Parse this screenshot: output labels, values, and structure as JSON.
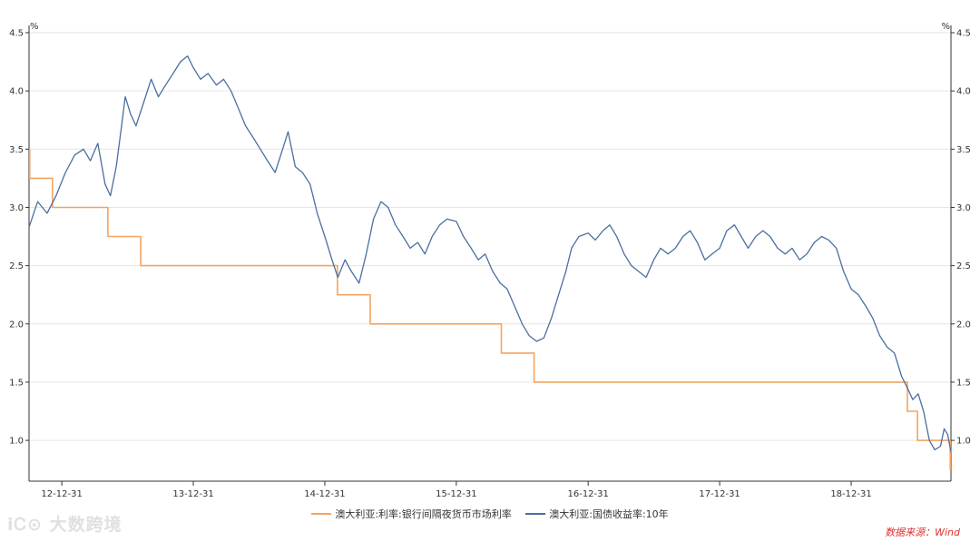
{
  "chart_data": {
    "type": "line",
    "title": "",
    "xlabel": "",
    "ylabel_left": "%",
    "ylabel_right": "%",
    "ylim": [
      0.65,
      4.5
    ],
    "yticks": [
      1.0,
      1.5,
      2.0,
      2.5,
      3.0,
      3.5,
      4.0,
      4.5
    ],
    "ytick_labels": [
      "1.0",
      "1.5",
      "2.0",
      "2.5",
      "3.0",
      "3.5",
      "4.0",
      "4.5"
    ],
    "xlim": [
      "2012-10-01",
      "2019-10-04"
    ],
    "xticks": [
      "2012-12-31",
      "2013-12-31",
      "2014-12-31",
      "2015-12-31",
      "2016-12-31",
      "2017-12-31",
      "2018-12-31"
    ],
    "xtick_labels": [
      "12-12-31",
      "13-12-31",
      "14-12-31",
      "15-12-31",
      "16-12-31",
      "17-12-31",
      "18-12-31"
    ],
    "grid": "horizontal",
    "legend_position": "bottom",
    "series": [
      {
        "name": "澳大利亚:利率:银行间隔夜货币市场利率",
        "color": "#f4a460",
        "step": true,
        "points": [
          [
            "2012-10-01",
            3.5
          ],
          [
            "2012-10-03",
            3.25
          ],
          [
            "2012-12-05",
            3.0
          ],
          [
            "2013-05-08",
            2.75
          ],
          [
            "2013-08-07",
            2.5
          ],
          [
            "2015-02-04",
            2.25
          ],
          [
            "2015-05-06",
            2.0
          ],
          [
            "2016-05-04",
            1.75
          ],
          [
            "2016-08-03",
            1.5
          ],
          [
            "2019-06-05",
            1.25
          ],
          [
            "2019-07-03",
            1.0
          ],
          [
            "2019-10-02",
            0.75
          ],
          [
            "2019-10-04",
            0.75
          ]
        ]
      },
      {
        "name": "澳大利亚:国债收益率:10年",
        "color": "#4a6fa0",
        "step": false,
        "points": [
          [
            "2012-10-01",
            2.83
          ],
          [
            "2012-10-25",
            3.05
          ],
          [
            "2012-11-20",
            2.95
          ],
          [
            "2012-12-15",
            3.1
          ],
          [
            "2013-01-10",
            3.3
          ],
          [
            "2013-02-05",
            3.45
          ],
          [
            "2013-03-01",
            3.5
          ],
          [
            "2013-03-20",
            3.4
          ],
          [
            "2013-04-10",
            3.55
          ],
          [
            "2013-04-30",
            3.2
          ],
          [
            "2013-05-15",
            3.1
          ],
          [
            "2013-05-31",
            3.35
          ],
          [
            "2013-06-15",
            3.7
          ],
          [
            "2013-06-25",
            3.95
          ],
          [
            "2013-07-10",
            3.8
          ],
          [
            "2013-07-25",
            3.7
          ],
          [
            "2013-08-15",
            3.9
          ],
          [
            "2013-09-05",
            4.1
          ],
          [
            "2013-09-25",
            3.95
          ],
          [
            "2013-10-15",
            4.05
          ],
          [
            "2013-11-05",
            4.15
          ],
          [
            "2013-11-25",
            4.25
          ],
          [
            "2013-12-15",
            4.3
          ],
          [
            "2013-12-31",
            4.2
          ],
          [
            "2014-01-20",
            4.1
          ],
          [
            "2014-02-10",
            4.15
          ],
          [
            "2014-03-05",
            4.05
          ],
          [
            "2014-03-25",
            4.1
          ],
          [
            "2014-04-15",
            4.0
          ],
          [
            "2014-05-05",
            3.85
          ],
          [
            "2014-05-25",
            3.7
          ],
          [
            "2014-06-15",
            3.6
          ],
          [
            "2014-07-05",
            3.5
          ],
          [
            "2014-07-25",
            3.4
          ],
          [
            "2014-08-15",
            3.3
          ],
          [
            "2014-09-05",
            3.5
          ],
          [
            "2014-09-20",
            3.65
          ],
          [
            "2014-10-10",
            3.35
          ],
          [
            "2014-10-30",
            3.3
          ],
          [
            "2014-11-20",
            3.2
          ],
          [
            "2014-12-10",
            2.95
          ],
          [
            "2014-12-31",
            2.75
          ],
          [
            "2015-01-20",
            2.55
          ],
          [
            "2015-02-05",
            2.4
          ],
          [
            "2015-02-25",
            2.55
          ],
          [
            "2015-03-15",
            2.45
          ],
          [
            "2015-04-05",
            2.35
          ],
          [
            "2015-04-25",
            2.6
          ],
          [
            "2015-05-15",
            2.9
          ],
          [
            "2015-06-05",
            3.05
          ],
          [
            "2015-06-25",
            3.0
          ],
          [
            "2015-07-15",
            2.85
          ],
          [
            "2015-08-05",
            2.75
          ],
          [
            "2015-08-25",
            2.65
          ],
          [
            "2015-09-15",
            2.7
          ],
          [
            "2015-10-05",
            2.6
          ],
          [
            "2015-10-25",
            2.75
          ],
          [
            "2015-11-15",
            2.85
          ],
          [
            "2015-12-05",
            2.9
          ],
          [
            "2015-12-31",
            2.88
          ],
          [
            "2016-01-20",
            2.75
          ],
          [
            "2016-02-10",
            2.65
          ],
          [
            "2016-03-01",
            2.55
          ],
          [
            "2016-03-20",
            2.6
          ],
          [
            "2016-04-10",
            2.45
          ],
          [
            "2016-05-01",
            2.35
          ],
          [
            "2016-05-20",
            2.3
          ],
          [
            "2016-06-10",
            2.15
          ],
          [
            "2016-07-01",
            2.0
          ],
          [
            "2016-07-20",
            1.9
          ],
          [
            "2016-08-10",
            1.85
          ],
          [
            "2016-08-30",
            1.88
          ],
          [
            "2016-09-20",
            2.05
          ],
          [
            "2016-10-10",
            2.25
          ],
          [
            "2016-10-30",
            2.45
          ],
          [
            "2016-11-15",
            2.65
          ],
          [
            "2016-12-05",
            2.75
          ],
          [
            "2016-12-31",
            2.78
          ],
          [
            "2017-01-20",
            2.72
          ],
          [
            "2017-02-10",
            2.8
          ],
          [
            "2017-03-01",
            2.85
          ],
          [
            "2017-03-20",
            2.75
          ],
          [
            "2017-04-10",
            2.6
          ],
          [
            "2017-04-30",
            2.5
          ],
          [
            "2017-05-20",
            2.45
          ],
          [
            "2017-06-10",
            2.4
          ],
          [
            "2017-07-01",
            2.55
          ],
          [
            "2017-07-20",
            2.65
          ],
          [
            "2017-08-10",
            2.6
          ],
          [
            "2017-08-30",
            2.65
          ],
          [
            "2017-09-20",
            2.75
          ],
          [
            "2017-10-10",
            2.8
          ],
          [
            "2017-10-30",
            2.7
          ],
          [
            "2017-11-20",
            2.55
          ],
          [
            "2017-12-10",
            2.6
          ],
          [
            "2017-12-31",
            2.65
          ],
          [
            "2018-01-20",
            2.8
          ],
          [
            "2018-02-10",
            2.85
          ],
          [
            "2018-03-01",
            2.75
          ],
          [
            "2018-03-20",
            2.65
          ],
          [
            "2018-04-10",
            2.75
          ],
          [
            "2018-04-30",
            2.8
          ],
          [
            "2018-05-20",
            2.75
          ],
          [
            "2018-06-10",
            2.65
          ],
          [
            "2018-07-01",
            2.6
          ],
          [
            "2018-07-20",
            2.65
          ],
          [
            "2018-08-10",
            2.55
          ],
          [
            "2018-08-30",
            2.6
          ],
          [
            "2018-09-20",
            2.7
          ],
          [
            "2018-10-10",
            2.75
          ],
          [
            "2018-10-30",
            2.72
          ],
          [
            "2018-11-20",
            2.65
          ],
          [
            "2018-12-10",
            2.45
          ],
          [
            "2018-12-31",
            2.3
          ],
          [
            "2019-01-20",
            2.25
          ],
          [
            "2019-02-10",
            2.15
          ],
          [
            "2019-03-01",
            2.05
          ],
          [
            "2019-03-20",
            1.9
          ],
          [
            "2019-04-10",
            1.8
          ],
          [
            "2019-04-30",
            1.75
          ],
          [
            "2019-05-20",
            1.55
          ],
          [
            "2019-06-05",
            1.45
          ],
          [
            "2019-06-20",
            1.35
          ],
          [
            "2019-07-05",
            1.4
          ],
          [
            "2019-07-20",
            1.25
          ],
          [
            "2019-08-05",
            1.0
          ],
          [
            "2019-08-20",
            0.92
          ],
          [
            "2019-09-05",
            0.95
          ],
          [
            "2019-09-15",
            1.1
          ],
          [
            "2019-09-25",
            1.05
          ],
          [
            "2019-10-04",
            0.9
          ]
        ]
      }
    ]
  },
  "legend": {
    "item1": "澳大利亚:利率:银行间隔夜货币市场利率",
    "item2": "澳大利亚:国债收益率:10年"
  },
  "watermark": "大数跨境",
  "source": "数据来源：Wind",
  "colors": {
    "axis": "#333333",
    "grid": "#e6e6e6",
    "policy_rate": "#f4a460",
    "bond_yield": "#4a6fa0",
    "source_text": "#e03030"
  }
}
